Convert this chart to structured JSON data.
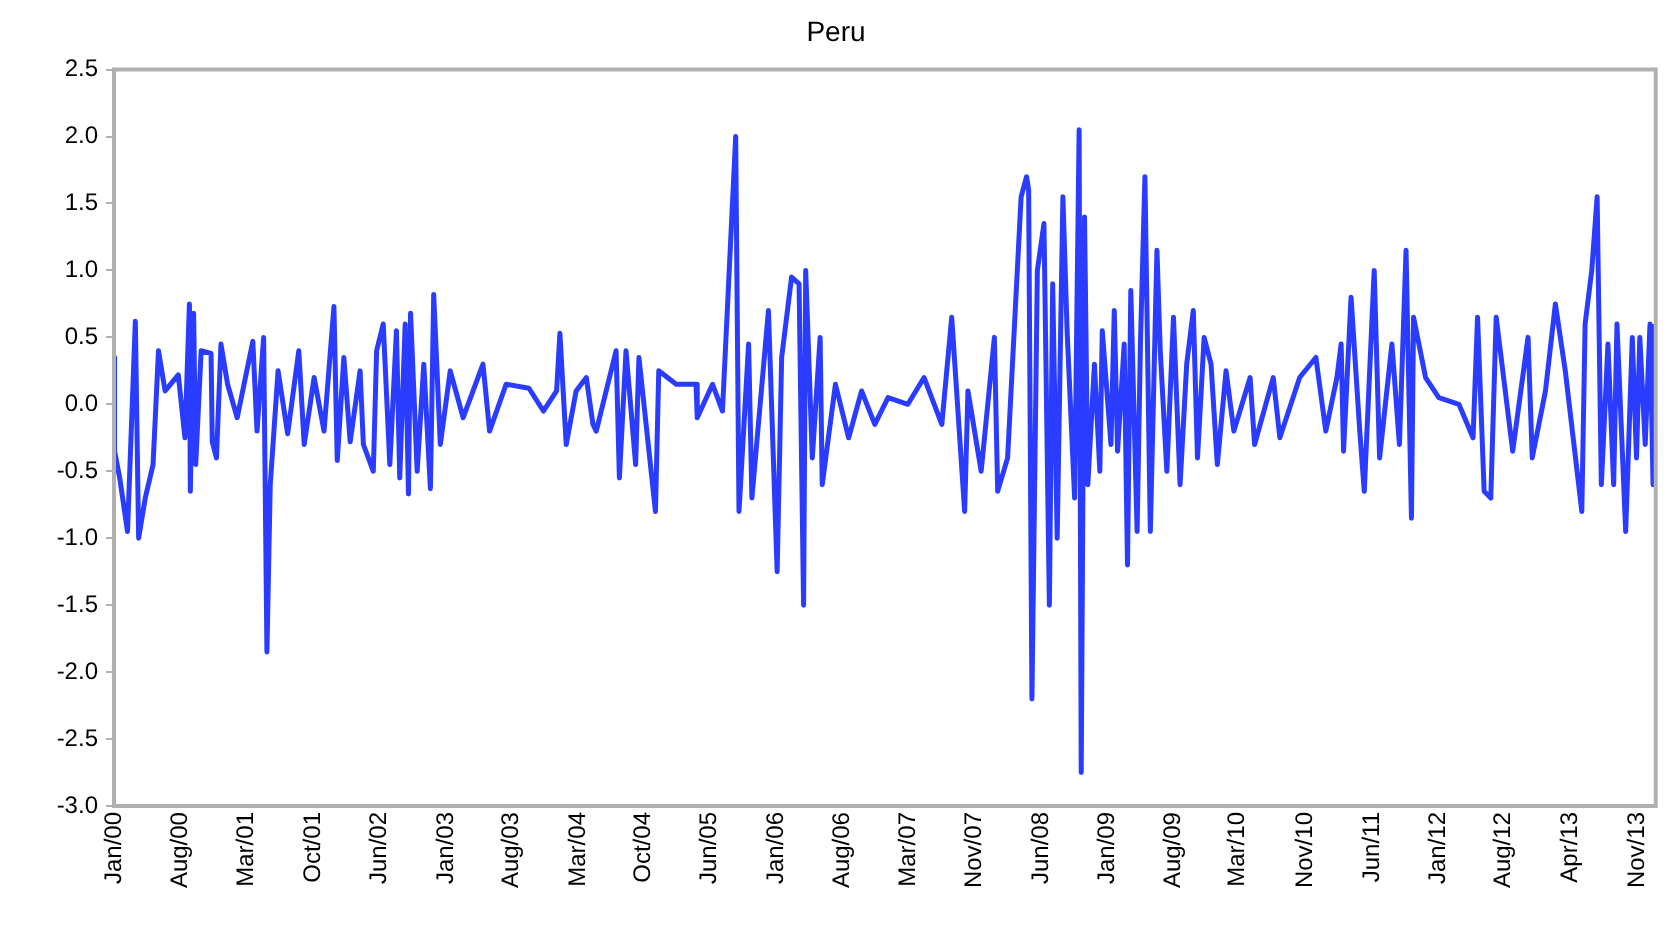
{
  "chart_data": {
    "type": "line",
    "title": "Peru",
    "legend": false,
    "grid": false,
    "marker": "none",
    "line_style": "solid",
    "xlim": [
      "2000-01-03",
      "2014-01-20"
    ],
    "ylim": [
      -3,
      2.5
    ],
    "yticks": [
      {
        "value": -3,
        "label": "-3.0"
      },
      -2.5,
      {
        "value": -2,
        "label": "-2.0"
      },
      -1.5,
      {
        "value": -1,
        "label": "-1.0"
      },
      -0.5,
      {
        "value": 0,
        "label": "0.0"
      },
      0.5,
      {
        "value": 1,
        "label": "1.0"
      },
      1.5,
      {
        "value": 2,
        "label": "2.0"
      },
      2.5
    ],
    "xticks": [
      {
        "value": "2000-01-03",
        "label": "Jan/00"
      },
      {
        "value": "2000-08-11",
        "label": "Aug/00"
      },
      {
        "value": "2001-03-20",
        "label": "Mar/01"
      },
      {
        "value": "2001-10-27",
        "label": "Oct/01"
      },
      {
        "value": "2002-06-05",
        "label": "Jun/02"
      },
      {
        "value": "2003-01-12",
        "label": "Jan/03"
      },
      {
        "value": "2003-08-19",
        "label": "Aug/03"
      },
      {
        "value": "2004-03-27",
        "label": "Mar/04"
      },
      {
        "value": "2004-10-31",
        "label": "Oct/04"
      },
      {
        "value": "2005-06-08",
        "label": "Jun/05"
      },
      {
        "value": "2006-01-14",
        "label": "Jan/06"
      },
      {
        "value": "2006-08-23",
        "label": "Aug/06"
      },
      {
        "value": "2007-03-31",
        "label": "Mar/07"
      },
      {
        "value": "2007-11-06",
        "label": "Nov/07"
      },
      {
        "value": "2008-06-14",
        "label": "Jun/08"
      },
      {
        "value": "2009-01-20",
        "label": "Jan/09"
      },
      {
        "value": "2009-08-29",
        "label": "Aug/09"
      },
      {
        "value": "2010-03-31",
        "label": "Mar/10"
      },
      {
        "value": "2010-11-12",
        "label": "Nov/10"
      },
      {
        "value": "2011-06-21",
        "label": "Jun/11"
      },
      {
        "value": "2012-01-27",
        "label": "Jan/12"
      },
      {
        "value": "2012-08-31",
        "label": "Aug/12"
      },
      {
        "value": "2013-04-12",
        "label": "Apr/13"
      },
      {
        "value": "2013-11-19",
        "label": "Nov/13"
      }
    ],
    "series": [
      {
        "color": "#2a3cff",
        "x": [
          "2000-01-03",
          "2000-01-05",
          "2000-01-22",
          "2000-02-17",
          "2000-03-14",
          "2000-03-25",
          "2000-04-16",
          "2000-05-12",
          "2000-05-30",
          "2000-06-21",
          "2000-08-04",
          "2000-08-26",
          "2000-09-10",
          "2000-09-13",
          "2000-09-24",
          "2000-10-01",
          "2000-10-19",
          "2000-11-21",
          "2000-11-25",
          "2000-12-09",
          "2000-12-24",
          "2001-01-15",
          "2001-02-16",
          "2001-04-09",
          "2001-04-23",
          "2001-05-15",
          "2001-05-26",
          "2001-06-06",
          "2001-07-02",
          "2001-08-03",
          "2001-09-09",
          "2001-09-27",
          "2001-10-30",
          "2001-12-02",
          "2002-01-04",
          "2002-01-15",
          "2002-02-06",
          "2002-02-27",
          "2002-04-01",
          "2002-04-12",
          "2002-05-15",
          "2002-05-26",
          "2002-06-17",
          "2002-07-09",
          "2002-07-31",
          "2002-08-11",
          "2002-08-29",
          "2002-09-09",
          "2002-09-16",
          "2002-10-08",
          "2002-10-30",
          "2002-11-21",
          "2002-12-02",
          "2002-12-24",
          "2003-01-26",
          "2003-03-10",
          "2003-05-15",
          "2003-06-06",
          "2003-07-31",
          "2003-10-15",
          "2003-12-02",
          "2004-01-15",
          "2004-01-26",
          "2004-02-16",
          "2004-03-20",
          "2004-04-23",
          "2004-05-15",
          "2004-05-26",
          "2004-07-31",
          "2004-08-11",
          "2004-09-02",
          "2004-10-04",
          "2004-10-15",
          "2004-12-09",
          "2004-12-20",
          "2005-02-16",
          "2005-04-23",
          "2005-04-27",
          "2005-06-17",
          "2005-07-20",
          "2005-09-02",
          "2005-09-13",
          "2005-10-15",
          "2005-10-26",
          "2005-12-20",
          "2006-01-18",
          "2006-02-02",
          "2006-03-07",
          "2006-04-01",
          "2006-04-16",
          "2006-04-23",
          "2006-05-15",
          "2006-06-10",
          "2006-06-17",
          "2006-07-31",
          "2006-09-13",
          "2006-10-26",
          "2006-12-09",
          "2007-01-22",
          "2007-03-29",
          "2007-05-22",
          "2007-07-20",
          "2007-08-22",
          "2007-10-04",
          "2007-10-15",
          "2007-11-28",
          "2008-01-11",
          "2008-01-22",
          "2008-02-24",
          "2008-04-09",
          "2008-04-27",
          "2008-05-04",
          "2008-05-15",
          "2008-06-02",
          "2008-06-24",
          "2008-07-12",
          "2008-07-23",
          "2008-08-07",
          "2008-08-26",
          "2008-09-09",
          "2008-10-04",
          "2008-10-19",
          "2008-10-26",
          "2008-11-06",
          "2008-11-17",
          "2008-12-09",
          "2008-12-27",
          "2009-01-04",
          "2009-02-02",
          "2009-02-13",
          "2009-02-24",
          "2009-03-18",
          "2009-03-29",
          "2009-04-09",
          "2009-04-30",
          "2009-05-11",
          "2009-05-26",
          "2009-06-13",
          "2009-07-05",
          "2009-07-16",
          "2009-08-07",
          "2009-08-29",
          "2009-09-20",
          "2009-10-12",
          "2009-11-03",
          "2009-11-17",
          "2009-12-09",
          "2010-01-01",
          "2010-01-22",
          "2010-02-20",
          "2010-03-18",
          "2010-05-11",
          "2010-05-26",
          "2010-07-27",
          "2010-08-18",
          "2010-10-23",
          "2010-12-16",
          "2011-01-18",
          "2011-02-24",
          "2011-03-10",
          "2011-03-18",
          "2011-04-12",
          "2011-05-11",
          "2011-05-26",
          "2011-06-28",
          "2011-07-16",
          "2011-08-26",
          "2011-09-20",
          "2011-10-12",
          "2011-10-30",
          "2011-11-06",
          "2011-12-16",
          "2012-01-29",
          "2012-04-05",
          "2012-05-22",
          "2012-06-06",
          "2012-06-28",
          "2012-07-20",
          "2012-08-07",
          "2012-10-01",
          "2012-11-21",
          "2012-12-05",
          "2013-01-18",
          "2013-02-20",
          "2013-03-25",
          "2013-05-19",
          "2013-05-30",
          "2013-06-21",
          "2013-07-09",
          "2013-07-23",
          "2013-08-14",
          "2013-09-02",
          "2013-09-13",
          "2013-10-12",
          "2013-11-03",
          "2013-11-17",
          "2013-11-28",
          "2013-12-16",
          "2014-01-01",
          "2014-01-11",
          "2014-01-15"
        ],
        "values": [
          0.35,
          -0.35,
          -0.55,
          -0.95,
          0.62,
          -1,
          -0.7,
          -0.45,
          0.4,
          0.1,
          0.22,
          -0.25,
          0.75,
          -0.65,
          0.68,
          -0.45,
          0.4,
          0.38,
          -0.28,
          -0.4,
          0.45,
          0.15,
          -0.1,
          0.47,
          -0.2,
          0.5,
          -1.85,
          -0.6,
          0.25,
          -0.22,
          0.4,
          -0.3,
          0.2,
          -0.2,
          0.73,
          -0.42,
          0.35,
          -0.28,
          0.25,
          -0.3,
          -0.5,
          0.4,
          0.6,
          -0.45,
          0.55,
          -0.55,
          0.6,
          -0.67,
          0.68,
          -0.5,
          0.3,
          -0.63,
          0.82,
          -0.3,
          0.25,
          -0.1,
          0.3,
          -0.2,
          0.15,
          0.12,
          -0.05,
          0.1,
          0.53,
          -0.3,
          0.1,
          0.2,
          -0.15,
          -0.2,
          0.4,
          -0.55,
          0.4,
          -0.45,
          0.35,
          -0.8,
          0.25,
          0.15,
          0.15,
          -0.1,
          0.15,
          -0.05,
          2,
          -0.8,
          0.45,
          -0.7,
          0.7,
          -1.25,
          0.35,
          0.95,
          0.9,
          -1.5,
          1,
          -0.4,
          0.5,
          -0.6,
          0.15,
          -0.25,
          0.1,
          -0.15,
          0.05,
          0,
          0.2,
          -0.15,
          0.65,
          -0.8,
          0.1,
          -0.5,
          0.5,
          -0.65,
          -0.4,
          1.55,
          1.7,
          1.6,
          -2.2,
          1,
          1.35,
          -1.5,
          0.9,
          -1,
          1.55,
          0.55,
          -0.7,
          2.05,
          -2.75,
          1.4,
          -0.6,
          0.3,
          -0.5,
          0.55,
          -0.3,
          0.7,
          -0.35,
          0.45,
          -1.2,
          0.85,
          -0.95,
          0.45,
          1.7,
          -0.95,
          1.15,
          0.4,
          -0.5,
          0.65,
          -0.6,
          0.3,
          0.7,
          -0.4,
          0.5,
          0.3,
          -0.45,
          0.25,
          -0.2,
          0.2,
          -0.3,
          0.2,
          -0.25,
          0.2,
          0.35,
          -0.2,
          0.2,
          0.45,
          -0.35,
          0.8,
          -0.2,
          -0.65,
          1,
          -0.4,
          0.45,
          -0.3,
          1.15,
          -0.85,
          0.65,
          0.2,
          0.05,
          0,
          -0.25,
          0.65,
          -0.65,
          -0.7,
          0.65,
          -0.35,
          0.5,
          -0.4,
          0.1,
          0.75,
          0.25,
          -0.8,
          0.6,
          1,
          1.55,
          -0.6,
          0.45,
          -0.6,
          0.6,
          -0.95,
          0.5,
          -0.4,
          0.5,
          -0.3,
          0.6,
          -0.6,
          0.6
        ]
      }
    ]
  }
}
